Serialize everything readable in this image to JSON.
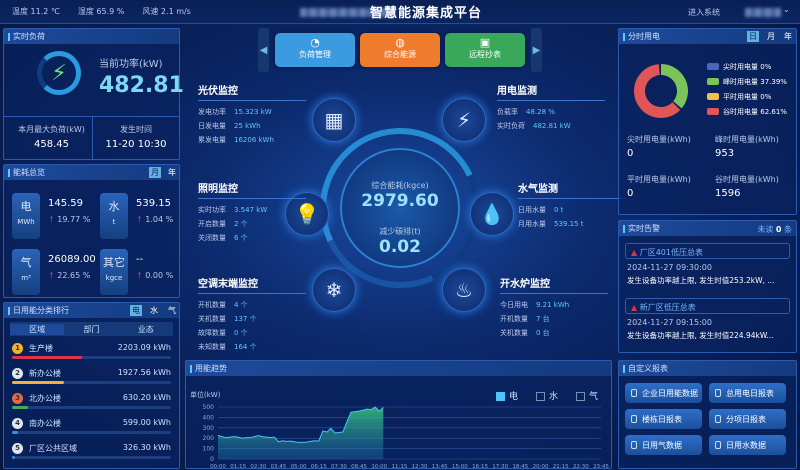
{
  "header": {
    "weather": [
      "温度 11.2 ℃",
      "湿度 65.9 %",
      "风速 2.1 m/s"
    ],
    "title": "智慧能源集成平台",
    "enter_system": "进入系统"
  },
  "nav": {
    "buttons": [
      {
        "label": "负荷管理",
        "color": "#3a9be0",
        "icon": "gauge-icon"
      },
      {
        "label": "综合能源",
        "color": "#ef7b2c",
        "icon": "globe-icon"
      },
      {
        "label": "远程抄表",
        "color": "#3aa85a",
        "icon": "meter-icon"
      }
    ]
  },
  "realtime_load": {
    "title": "实时负荷",
    "current_label": "当前功率(kW)",
    "current_value": "482.81",
    "max_label": "本月最大负荷(kW)",
    "max_value": "458.45",
    "time_label": "发生时间",
    "time_value": "11-20 10:30"
  },
  "overview": {
    "title": "能耗总览",
    "toggles": [
      "月",
      "年"
    ],
    "active": "月",
    "items": [
      {
        "name": "电",
        "unit": "MWh",
        "value": "145.59",
        "change": "19.77 %"
      },
      {
        "name": "水",
        "unit": "t",
        "value": "539.15",
        "change": "1.04 %"
      },
      {
        "name": "气",
        "unit": "m³",
        "value": "26089.00",
        "change": "22.65 %"
      },
      {
        "name": "其它",
        "unit": "kgce",
        "value": "--",
        "change": "0.00 %"
      }
    ]
  },
  "ranking": {
    "title": "日用能分类排行",
    "toggles": [
      "电",
      "水",
      "气"
    ],
    "active": "电",
    "tabs": [
      "区域",
      "部门",
      "业态"
    ],
    "items": [
      {
        "rank": "1",
        "name": "生产楼",
        "value": "2203.09 kWh",
        "pct": 44,
        "color": "#e0334a",
        "medal": "#f2b233"
      },
      {
        "rank": "2",
        "name": "新办公楼",
        "value": "1927.56 kWh",
        "pct": 33,
        "color": "#f2b233",
        "medal": "#dfe6f2"
      },
      {
        "rank": "3",
        "name": "北办公楼",
        "value": "630.20 kWh",
        "pct": 10,
        "color": "#47a860",
        "medal": "#e06a4a"
      },
      {
        "rank": "4",
        "name": "南办公楼",
        "value": "599.00 kWh",
        "pct": 4,
        "color": "#3a8ee0",
        "medal": "#dfe6f2"
      },
      {
        "rank": "5",
        "name": "厂区公共区域",
        "value": "326.30 kWh",
        "pct": 2,
        "color": "#3a8ee0",
        "medal": "#dfe6f2"
      }
    ]
  },
  "monitors": {
    "pv": {
      "title": "光伏监控",
      "rows": [
        [
          "发电功率",
          "15.323 kW"
        ],
        [
          "日发电量",
          "25 kWh"
        ],
        [
          "累发电量",
          "16206 kWh"
        ]
      ]
    },
    "power": {
      "title": "用电监测",
      "rows": [
        [
          "负载率",
          "48.28 %"
        ],
        [
          "实时负荷",
          "482.81 kW"
        ]
      ]
    },
    "lighting": {
      "title": "照明监控",
      "rows": [
        [
          "实时功率",
          "3.547 kW"
        ],
        [
          "开启数量",
          "2 个"
        ],
        [
          "关闭数量",
          "6 个"
        ]
      ]
    },
    "water": {
      "title": "水气监测",
      "rows": [
        [
          "日用水量",
          "0 t"
        ],
        [
          "月用水量",
          "539.15 t"
        ]
      ]
    },
    "ac": {
      "title": "空调末端监控",
      "rows": [
        [
          "开机数量",
          "4 个"
        ],
        [
          "关机数量",
          "137 个"
        ],
        [
          "故障数量",
          "0 个"
        ],
        [
          "未知数量",
          "164 个"
        ]
      ]
    },
    "boiler": {
      "title": "开水炉监控",
      "rows": [
        [
          "今日用电",
          "9.21 kWh"
        ],
        [
          "开机数量",
          "7 台"
        ],
        [
          "关机数量",
          "0 台"
        ]
      ]
    }
  },
  "center": {
    "energy_label": "综合能耗(kgce)",
    "energy_value": "2979.60",
    "carbon_label": "减少碳排(t)",
    "carbon_value": "0.02"
  },
  "tou": {
    "title": "分时用电",
    "toggles": [
      "日",
      "月",
      "年"
    ],
    "active": "日",
    "legend": [
      {
        "name": "尖时用电量",
        "pct": "0%",
        "value": 0,
        "color": "#4a67b8"
      },
      {
        "name": "峰时用电量",
        "pct": "37.39%",
        "value": 37.39,
        "color": "#7cc45a"
      },
      {
        "name": "平时用电量",
        "pct": "0%",
        "value": 0,
        "color": "#f2c044"
      },
      {
        "name": "谷时用电量",
        "pct": "62.61%",
        "value": 62.61,
        "color": "#e05555"
      }
    ],
    "stats": [
      [
        "尖时用电量(kWh)",
        "0"
      ],
      [
        "峰时用电量(kWh)",
        "953"
      ],
      [
        "平时用电量(kWh)",
        "0"
      ],
      [
        "谷时用电量(kWh)",
        "1596"
      ]
    ]
  },
  "alarms": {
    "title": "实时告警",
    "unread_label": "未读",
    "unread_count": "0",
    "unread_unit": "条",
    "items": [
      {
        "name": "厂区401低压总表",
        "time": "2024-11-27 09:30:00",
        "msg": "发生设备功率越上限, 发生时值253.2kW, ..."
      },
      {
        "name": "新厂区低压总表",
        "time": "2024-11-27 09:15:00",
        "msg": "发生设备功率越上限, 发生时值224.94kW..."
      }
    ]
  },
  "reports": {
    "title": "自定义报表",
    "buttons": [
      "企业日用能数据",
      "总用电日报表",
      "楼栋日报表",
      "分项日报表",
      "日用气数据",
      "日用水数据"
    ]
  },
  "trend": {
    "title": "用能趋势",
    "legend": [
      {
        "name": "电",
        "checked": true
      },
      {
        "name": "水",
        "checked": false
      },
      {
        "name": "气",
        "checked": false
      }
    ]
  },
  "chart_data": {
    "type": "area",
    "ylabel": "单位(kW)",
    "ylim": [
      0,
      500
    ],
    "yticks": [
      0,
      100,
      200,
      300,
      400,
      500
    ],
    "grid": true,
    "xticks": [
      "00:00",
      "01:15",
      "02:30",
      "03:45",
      "05:00",
      "06:15",
      "07:30",
      "08:45",
      "10:00",
      "11:15",
      "12:30",
      "13:45",
      "15:00",
      "16:15",
      "17:30",
      "18:45",
      "20:00",
      "21:15",
      "22:30",
      "23:45"
    ],
    "series": [
      {
        "name": "电",
        "color": "#4fc3f7",
        "values": [
          225,
          215,
          205,
          210,
          215,
          210,
          200,
          205,
          205,
          215,
          225,
          215,
          210,
          205,
          210,
          165,
          175,
          170,
          172,
          165,
          160,
          160,
          162,
          170,
          175,
          172,
          270,
          260,
          295,
          250,
          255,
          260,
          360,
          450,
          455,
          460,
          470,
          480,
          475,
          500,
          460,
          495
        ]
      }
    ],
    "interval_minutes": 15
  }
}
